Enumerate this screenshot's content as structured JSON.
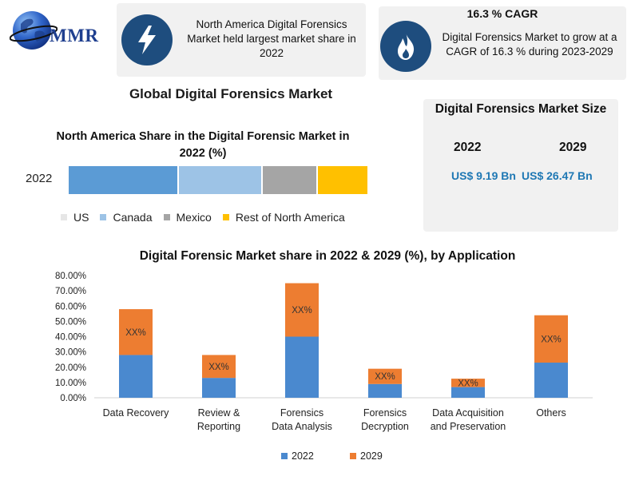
{
  "brand": {
    "logo_text": "MMR"
  },
  "card_share": {
    "icon": "lightning-bolt-icon",
    "text": "North America Digital Forensics Market held largest market share in 2022"
  },
  "card_cagr": {
    "icon": "flame-icon",
    "title": "16.3 % CAGR",
    "text": "Digital Forensics Market to grow at a CAGR of 16.3 % during 2023-2029"
  },
  "main_title": "Global Digital Forensics Market",
  "market_size": {
    "title": "Digital Forensics Market Size",
    "year_1": "2022",
    "year_2": "2029",
    "value_1": "US$ 9.19 Bn",
    "value_2": "US$ 26.47 Bn"
  },
  "colors": {
    "accent_blue": "#1f78b4",
    "icon_circle": "#1e4d7e",
    "series_2022": "#4a89cf",
    "series_2029": "#ed7d31"
  },
  "chart_data": [
    {
      "type": "bar",
      "stacked": true,
      "orientation": "horizontal",
      "title": "North America Share in the Digital Forensic Market in 2022 (%)",
      "categories": [
        "2022"
      ],
      "series": [
        {
          "name": "US",
          "values": [
            37
          ],
          "color": "#5b9bd5"
        },
        {
          "name": "Canada",
          "values": [
            28
          ],
          "color": "#9dc3e6"
        },
        {
          "name": "Mexico",
          "values": [
            18.5
          ],
          "color": "#a5a5a5"
        },
        {
          "name": "Rest of North America",
          "values": [
            16.5
          ],
          "color": "#ffc000"
        }
      ],
      "legend": "bottom",
      "grid": false
    },
    {
      "type": "bar",
      "stacked": true,
      "title": "Digital Forensic Market share in 2022 & 2029 (%), by Application",
      "categories": [
        "Data Recovery",
        "Review & Reporting",
        "Forensics Data Analysis",
        "Forensics Decryption",
        "Data Acquisition and Preservation",
        "Others"
      ],
      "series": [
        {
          "name": "2022",
          "values": [
            28,
            13,
            40,
            9,
            7,
            23
          ],
          "color": "#4a89cf"
        },
        {
          "name": "2029",
          "values": [
            30,
            15,
            35,
            10,
            5.5,
            31
          ],
          "color": "#ed7d31"
        }
      ],
      "data_label": "XX%",
      "yticks": [
        "0.00%",
        "10.00%",
        "20.00%",
        "30.00%",
        "40.00%",
        "50.00%",
        "60.00%",
        "70.00%",
        "80.00%"
      ],
      "ylim": [
        0,
        80
      ],
      "legend": "bottom",
      "grid": false
    }
  ]
}
